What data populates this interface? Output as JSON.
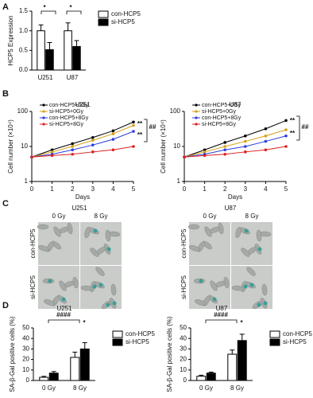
{
  "panel_labels": [
    "A",
    "B",
    "C",
    "D"
  ],
  "micrographs": {
    "cell_lines": [
      "U251",
      "U87"
    ],
    "doses": [
      "0 Gy",
      "8 Gy"
    ],
    "groups": [
      "con-HCP5",
      "si-HCP5"
    ]
  },
  "chart_data": [
    {
      "type": "bar",
      "ylabel": "HCP5 Expression",
      "categories": [
        "U251",
        "U87"
      ],
      "series": [
        {
          "name": "con-HCP5",
          "color": "#ffffff",
          "values": [
            1.0,
            1.0
          ],
          "errors": [
            0.15,
            0.2
          ]
        },
        {
          "name": "si-HCP5",
          "color": "#000000",
          "values": [
            0.52,
            0.6
          ],
          "errors": [
            0.18,
            0.15
          ]
        }
      ],
      "ylim": [
        0,
        1.5
      ],
      "yticks": [
        {
          "value": 0,
          "label": "0.0"
        },
        0.5,
        {
          "value": 1,
          "label": "1.0"
        },
        1.5
      ],
      "annotations": [
        "*",
        "*"
      ]
    },
    {
      "type": "line",
      "title": "U251",
      "ylabel": "Cell number (×10⁴)",
      "xlabel": "Days",
      "log": true,
      "x": [
        0,
        1,
        2,
        3,
        4,
        5
      ],
      "xlim": [
        0,
        5
      ],
      "xticks": [
        0,
        1,
        2,
        3,
        4,
        5
      ],
      "ylim": [
        1,
        100
      ],
      "yticks": [
        1,
        10,
        100
      ],
      "series": [
        {
          "name": "con-HCP5+0Gy",
          "color": "#000000",
          "values": [
            5,
            8,
            12,
            18,
            28,
            50
          ]
        },
        {
          "name": "si-HCP5+0Gy",
          "color": "#d4a017",
          "values": [
            5,
            7,
            10,
            15,
            23,
            40
          ]
        },
        {
          "name": "con-HCP5+8Gy",
          "color": "#2a3ee0",
          "values": [
            5,
            6,
            8,
            11,
            16,
            27
          ]
        },
        {
          "name": "si-HCP5+8Gy",
          "color": "#e02020",
          "values": [
            5,
            5.5,
            6,
            7,
            8,
            10
          ]
        }
      ],
      "annotations": [
        "**",
        "**",
        "##"
      ]
    },
    {
      "type": "line",
      "title": "U87",
      "ylabel": "Cell number (×10⁴)",
      "xlabel": "Days",
      "log": true,
      "x": [
        0,
        1,
        2,
        3,
        4,
        5
      ],
      "xlim": [
        0,
        5
      ],
      "xticks": [
        0,
        1,
        2,
        3,
        4,
        5
      ],
      "ylim": [
        1,
        100
      ],
      "yticks": [
        1,
        10,
        100
      ],
      "series": [
        {
          "name": "con-HCP5+0Gy",
          "color": "#000000",
          "values": [
            5,
            8,
            13,
            20,
            32,
            55
          ]
        },
        {
          "name": "si-HCP5+0Gy",
          "color": "#d4a017",
          "values": [
            5,
            7,
            10,
            14,
            20,
            30
          ]
        },
        {
          "name": "con-HCP5+8Gy",
          "color": "#2a3ee0",
          "values": [
            5,
            6,
            8,
            10,
            14,
            20
          ]
        },
        {
          "name": "si-HCP5+8Gy",
          "color": "#e02020",
          "values": [
            5,
            5.5,
            6,
            7,
            8,
            10
          ]
        }
      ],
      "annotations": [
        "**",
        "**",
        "##"
      ]
    },
    {
      "type": "bar",
      "title": "U251",
      "ylabel": "SA-β-Gal positive cells (%)",
      "categories": [
        "0 Gy",
        "8 Gy"
      ],
      "series": [
        {
          "name": "con-HCP5",
          "color": "#ffffff",
          "values": [
            3,
            22
          ],
          "errors": [
            1,
            5
          ]
        },
        {
          "name": "si-HCP5",
          "color": "#000000",
          "values": [
            7,
            30
          ],
          "errors": [
            1.5,
            6
          ]
        }
      ],
      "ylim": [
        0,
        50
      ],
      "yticks": [
        0,
        10,
        20,
        30,
        40,
        50
      ],
      "annotations": [
        "####",
        "*"
      ]
    },
    {
      "type": "bar",
      "title": "U87",
      "ylabel": "SA-β-Gal positive cells (%)",
      "categories": [
        "0 Gy",
        "8 Gy"
      ],
      "series": [
        {
          "name": "con-HCP5",
          "color": "#ffffff",
          "values": [
            4,
            25
          ],
          "errors": [
            1,
            4
          ]
        },
        {
          "name": "si-HCP5",
          "color": "#000000",
          "values": [
            7,
            38
          ],
          "errors": [
            1,
            6
          ]
        }
      ],
      "ylim": [
        0,
        50
      ],
      "yticks": [
        0,
        10,
        20,
        30,
        40,
        50
      ],
      "annotations": [
        "####",
        "*"
      ]
    }
  ]
}
